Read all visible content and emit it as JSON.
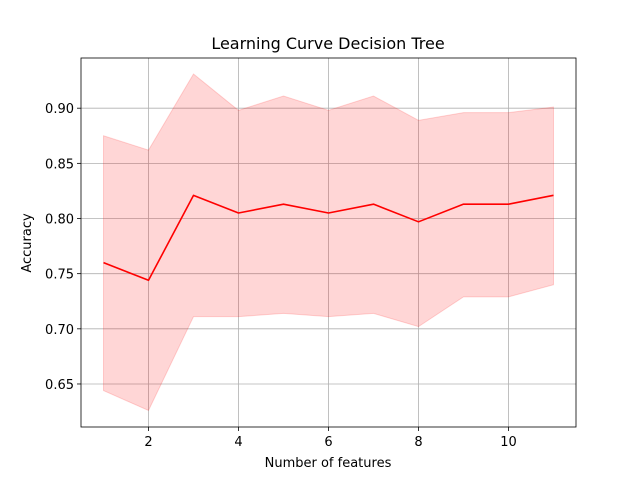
{
  "chart_data": {
    "type": "line",
    "title": "Learning Curve Decision Tree",
    "xlabel": "Number of features",
    "ylabel": "Accuracy",
    "xlim": [
      0.5,
      11.5
    ],
    "ylim": [
      0.611,
      0.9455
    ],
    "xticks": [
      2,
      4,
      6,
      8,
      10
    ],
    "yticks": [
      0.65,
      0.7,
      0.75,
      0.8,
      0.85,
      0.9
    ],
    "ytick_labels": [
      "0.65",
      "0.70",
      "0.75",
      "0.80",
      "0.85",
      "0.90"
    ],
    "grid": true,
    "x": [
      1,
      2,
      3,
      4,
      5,
      6,
      7,
      8,
      9,
      10,
      11
    ],
    "series": [
      {
        "values": [
          0.76,
          0.744,
          0.821,
          0.805,
          0.813,
          0.805,
          0.813,
          0.797,
          0.813,
          0.813,
          0.821
        ],
        "lower": [
          0.644,
          0.626,
          0.711,
          0.711,
          0.714,
          0.711,
          0.714,
          0.702,
          0.729,
          0.729,
          0.74
        ],
        "upper": [
          0.875,
          0.862,
          0.931,
          0.898,
          0.911,
          0.898,
          0.911,
          0.889,
          0.896,
          0.896,
          0.901
        ],
        "color": "#ff0000",
        "band_color": "#ff0000"
      }
    ]
  }
}
